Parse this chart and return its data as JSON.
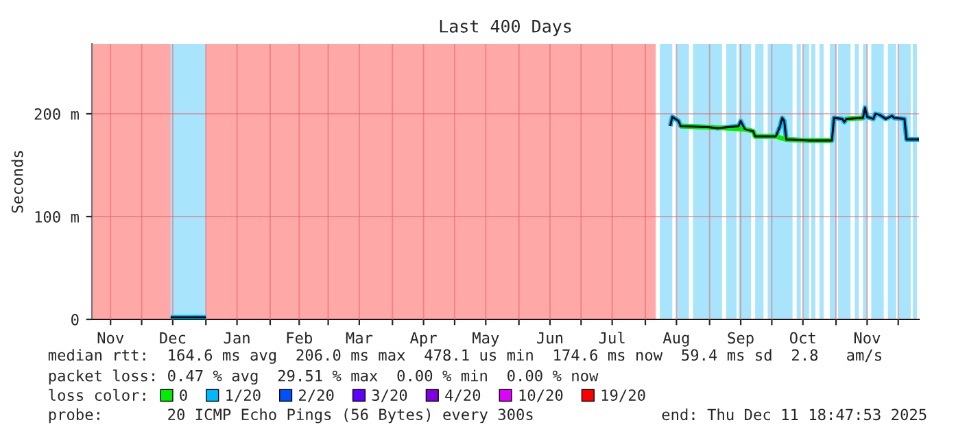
{
  "chart_data": {
    "type": "line",
    "title": "Last 400 Days",
    "ylabel": "Seconds",
    "xlim": [
      "2024-11-07",
      "2025-12-11"
    ],
    "ylim": [
      0,
      268
    ],
    "yticks": [
      {
        "value": 0,
        "label": "0"
      },
      {
        "value": 100,
        "label": "100 m"
      },
      {
        "value": 200,
        "label": "200 m"
      }
    ],
    "xticks": [
      {
        "value": "2024-11-16",
        "label": "Nov"
      },
      {
        "value": "2024-12-01",
        "label": null
      },
      {
        "value": "2024-12-16",
        "label": "Dec"
      },
      {
        "value": "2025-01-01",
        "label": null
      },
      {
        "value": "2025-01-16",
        "label": "Jan"
      },
      {
        "value": "2025-02-01",
        "label": null
      },
      {
        "value": "2025-02-15",
        "label": "Feb"
      },
      {
        "value": "2025-03-01",
        "label": null
      },
      {
        "value": "2025-03-16",
        "label": "Mar"
      },
      {
        "value": "2025-04-01",
        "label": null
      },
      {
        "value": "2025-04-16",
        "label": "Apr"
      },
      {
        "value": "2025-05-01",
        "label": null
      },
      {
        "value": "2025-05-16",
        "label": "May"
      },
      {
        "value": "2025-06-01",
        "label": null
      },
      {
        "value": "2025-06-16",
        "label": "Jun"
      },
      {
        "value": "2025-07-01",
        "label": null
      },
      {
        "value": "2025-07-16",
        "label": "Jul"
      },
      {
        "value": "2025-08-01",
        "label": null
      },
      {
        "value": "2025-08-16",
        "label": "Aug"
      },
      {
        "value": "2025-09-01",
        "label": null
      },
      {
        "value": "2025-09-16",
        "label": "Sep"
      },
      {
        "value": "2025-10-01",
        "label": null
      },
      {
        "value": "2025-10-16",
        "label": "Oct"
      },
      {
        "value": "2025-11-01",
        "label": null
      },
      {
        "value": "2025-11-16",
        "label": "Nov"
      },
      {
        "value": "2025-12-01",
        "label": null
      }
    ],
    "grid": true,
    "legend": "bottom",
    "legend_title": "loss color:",
    "bands": [
      {
        "axis": "x",
        "from": "2024-11-07",
        "to": "2024-12-15",
        "color": "#ffa8a8"
      },
      {
        "axis": "x",
        "from": "2024-12-15",
        "to": "2025-01-01",
        "color": "#a8e4fc"
      },
      {
        "axis": "x",
        "from": "2025-01-01",
        "to": "2025-08-06",
        "color": "#ffa8a8"
      },
      {
        "axis": "x",
        "from": "2025-08-08",
        "to": "2025-08-14",
        "color": "#a8e4fc"
      },
      {
        "axis": "x",
        "from": "2025-08-16",
        "to": "2025-08-22",
        "color": "#a8e4fc"
      },
      {
        "axis": "x",
        "from": "2025-08-24",
        "to": "2025-09-07",
        "color": "#a8e4fc"
      },
      {
        "axis": "x",
        "from": "2025-09-09",
        "to": "2025-09-14",
        "color": "#a8e4fc"
      },
      {
        "axis": "x",
        "from": "2025-09-15",
        "to": "2025-09-21",
        "color": "#a8e4fc"
      },
      {
        "axis": "x",
        "from": "2025-09-23",
        "to": "2025-09-27",
        "color": "#a8e4fc"
      },
      {
        "axis": "x",
        "from": "2025-09-29",
        "to": "2025-10-11",
        "color": "#a8e4fc"
      },
      {
        "axis": "x",
        "from": "2025-10-13",
        "to": "2025-10-15",
        "color": "#a8e4fc"
      },
      {
        "axis": "x",
        "from": "2025-10-16",
        "to": "2025-10-19",
        "color": "#a8e4fc"
      },
      {
        "axis": "x",
        "from": "2025-10-20",
        "to": "2025-10-22",
        "color": "#a8e4fc"
      },
      {
        "axis": "x",
        "from": "2025-10-24",
        "to": "2025-10-26",
        "color": "#a8e4fc"
      },
      {
        "axis": "x",
        "from": "2025-10-29",
        "to": "2025-11-01",
        "color": "#a8e4fc"
      },
      {
        "axis": "x",
        "from": "2025-11-02",
        "to": "2025-11-08",
        "color": "#a8e4fc"
      },
      {
        "axis": "x",
        "from": "2025-11-10",
        "to": "2025-11-12",
        "color": "#a8e4fc"
      },
      {
        "axis": "x",
        "from": "2025-11-14",
        "to": "2025-11-16",
        "color": "#a8e4fc"
      },
      {
        "axis": "x",
        "from": "2025-11-18",
        "to": "2025-11-24",
        "color": "#a8e4fc"
      },
      {
        "axis": "x",
        "from": "2025-11-26",
        "to": "2025-11-30",
        "color": "#a8e4fc"
      },
      {
        "axis": "x",
        "from": "2025-12-01",
        "to": "2025-12-07",
        "color": "#a8e4fc"
      },
      {
        "axis": "x",
        "from": "2025-12-08",
        "to": "2025-12-10",
        "color": "#a8e4fc"
      }
    ],
    "series": [
      {
        "color": "#000000",
        "x": [
          "2024-12-15",
          "2025-01-01",
          "2025-08-06",
          "2025-08-13",
          "2025-08-14",
          "2025-08-17",
          "2025-08-18",
          "2025-08-31",
          "2025-09-05",
          "2025-09-15",
          "2025-09-16",
          "2025-09-18",
          "2025-09-22",
          "2025-09-23",
          "2025-10-03",
          "2025-10-05",
          "2025-10-06",
          "2025-10-07",
          "2025-10-08",
          "2025-10-19",
          "2025-10-30",
          "2025-10-31",
          "2025-11-04",
          "2025-11-05",
          "2025-11-06",
          "2025-11-14",
          "2025-11-15",
          "2025-11-16",
          "2025-11-19",
          "2025-11-20",
          "2025-11-22",
          "2025-11-25",
          "2025-11-28",
          "2025-11-29",
          "2025-12-04",
          "2025-12-05",
          "2025-12-11"
        ],
        "values": [
          2,
          2,
          null,
          188,
          197,
          193,
          188,
          187,
          186,
          188,
          193,
          185,
          183,
          178,
          178,
          188,
          196,
          193,
          175,
          174,
          174,
          196,
          195,
          192,
          195,
          196,
          206,
          197,
          195,
          200,
          199,
          195,
          198,
          196,
          195,
          175,
          175
        ]
      },
      {
        "name": "0",
        "color": "#00ee00",
        "x": [
          "2025-08-18",
          "2025-08-31",
          "2025-09-18",
          "2025-09-22",
          "2025-09-23",
          "2025-10-03",
          "2025-10-08",
          "2025-10-19",
          "2025-10-30",
          "2025-11-01",
          "2025-11-06",
          "2025-11-14"
        ],
        "values": [
          188,
          187,
          185,
          183,
          178,
          178,
          175,
          174,
          174,
          null,
          195,
          196
        ]
      },
      {
        "name": "1/20",
        "color": "#00b8ff",
        "x": [
          "2024-12-15",
          "2025-01-01",
          "2025-08-06",
          "2025-08-13",
          "2025-08-14",
          "2025-08-17",
          "2025-08-18",
          "2025-08-31",
          "2025-09-05",
          "2025-09-15",
          "2025-09-16",
          "2025-09-18",
          "2025-09-22",
          "2025-09-23",
          "2025-10-03",
          "2025-10-05",
          "2025-10-06",
          "2025-10-07",
          "2025-10-08",
          "2025-10-19",
          "2025-10-30",
          "2025-10-31",
          "2025-11-04",
          "2025-11-05",
          "2025-11-06",
          "2025-11-14",
          "2025-11-15",
          "2025-11-16",
          "2025-11-19",
          "2025-11-20",
          "2025-11-22",
          "2025-11-25",
          "2025-11-28",
          "2025-11-29",
          "2025-12-04",
          "2025-12-05",
          "2025-12-11"
        ],
        "values": [
          2,
          2,
          null,
          188,
          197,
          193,
          188,
          187,
          186,
          188,
          193,
          185,
          183,
          178,
          178,
          188,
          196,
          193,
          175,
          174,
          174,
          196,
          195,
          192,
          195,
          196,
          206,
          197,
          195,
          200,
          199,
          195,
          198,
          196,
          195,
          175,
          175
        ]
      },
      {
        "name": "2/20",
        "color": "#0050ff"
      },
      {
        "name": "3/20",
        "color": "#6000ff"
      },
      {
        "name": "4/20",
        "color": "#8000e0"
      },
      {
        "name": "10/20",
        "color": "#e000ff"
      },
      {
        "name": "19/20",
        "color": "#ff0000"
      }
    ],
    "annotations": [
      "median rtt:  164.6 ms avg  206.0 ms max  478.1 us min  174.6 ms now  59.4 ms sd  2.8   am/s",
      "packet loss: 0.47 % avg  29.51 % max  0.00 % min  0.00 % now",
      "probe:       20 ICMP Echo Pings (56 Bytes) every 300s",
      "end: Thu Dec 11 18:47:53 2025"
    ]
  }
}
